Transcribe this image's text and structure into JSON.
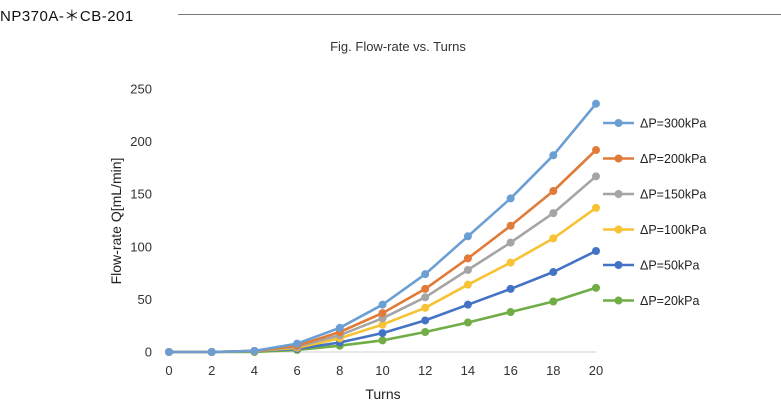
{
  "header": {
    "model_code": "NP370A-＊CB-201"
  },
  "chart_data": {
    "type": "line",
    "title": "Fig. Flow-rate vs. Turns",
    "xlabel": "Turns",
    "ylabel": "Flow-rate Q[mL/min]",
    "x": [
      0,
      2,
      4,
      6,
      8,
      10,
      12,
      14,
      16,
      18,
      20
    ],
    "xlim": [
      0,
      20
    ],
    "ylim": [
      0,
      250
    ],
    "xticks": [
      0,
      2,
      4,
      6,
      8,
      10,
      12,
      14,
      16,
      18,
      20
    ],
    "yticks": [
      0,
      50,
      100,
      150,
      200,
      250
    ],
    "grid": false,
    "legend_position": "right",
    "series": [
      {
        "name": "ΔP=300kPa",
        "color": "#6b9fd4",
        "values": [
          0,
          0,
          1,
          8,
          23,
          45,
          74,
          110,
          146,
          187,
          236
        ]
      },
      {
        "name": "ΔP=200kPa",
        "color": "#e07b39",
        "values": [
          0,
          0,
          1,
          6,
          19,
          37,
          60,
          89,
          120,
          153,
          192
        ]
      },
      {
        "name": "ΔP=150kPa",
        "color": "#a5a5a5",
        "values": [
          0,
          0,
          1,
          5,
          16,
          32,
          52,
          78,
          104,
          132,
          167
        ]
      },
      {
        "name": "ΔP=100kPa",
        "color": "#f7c233",
        "values": [
          0,
          0,
          1,
          4,
          13,
          26,
          42,
          64,
          85,
          108,
          137
        ]
      },
      {
        "name": "ΔP=50kPa",
        "color": "#4472c4",
        "values": [
          0,
          0,
          1,
          3,
          9,
          18,
          30,
          45,
          60,
          76,
          96
        ]
      },
      {
        "name": "ΔP=20kPa",
        "color": "#70ad47",
        "values": [
          0,
          0,
          0,
          2,
          6,
          11,
          19,
          28,
          38,
          48,
          61
        ]
      }
    ]
  }
}
